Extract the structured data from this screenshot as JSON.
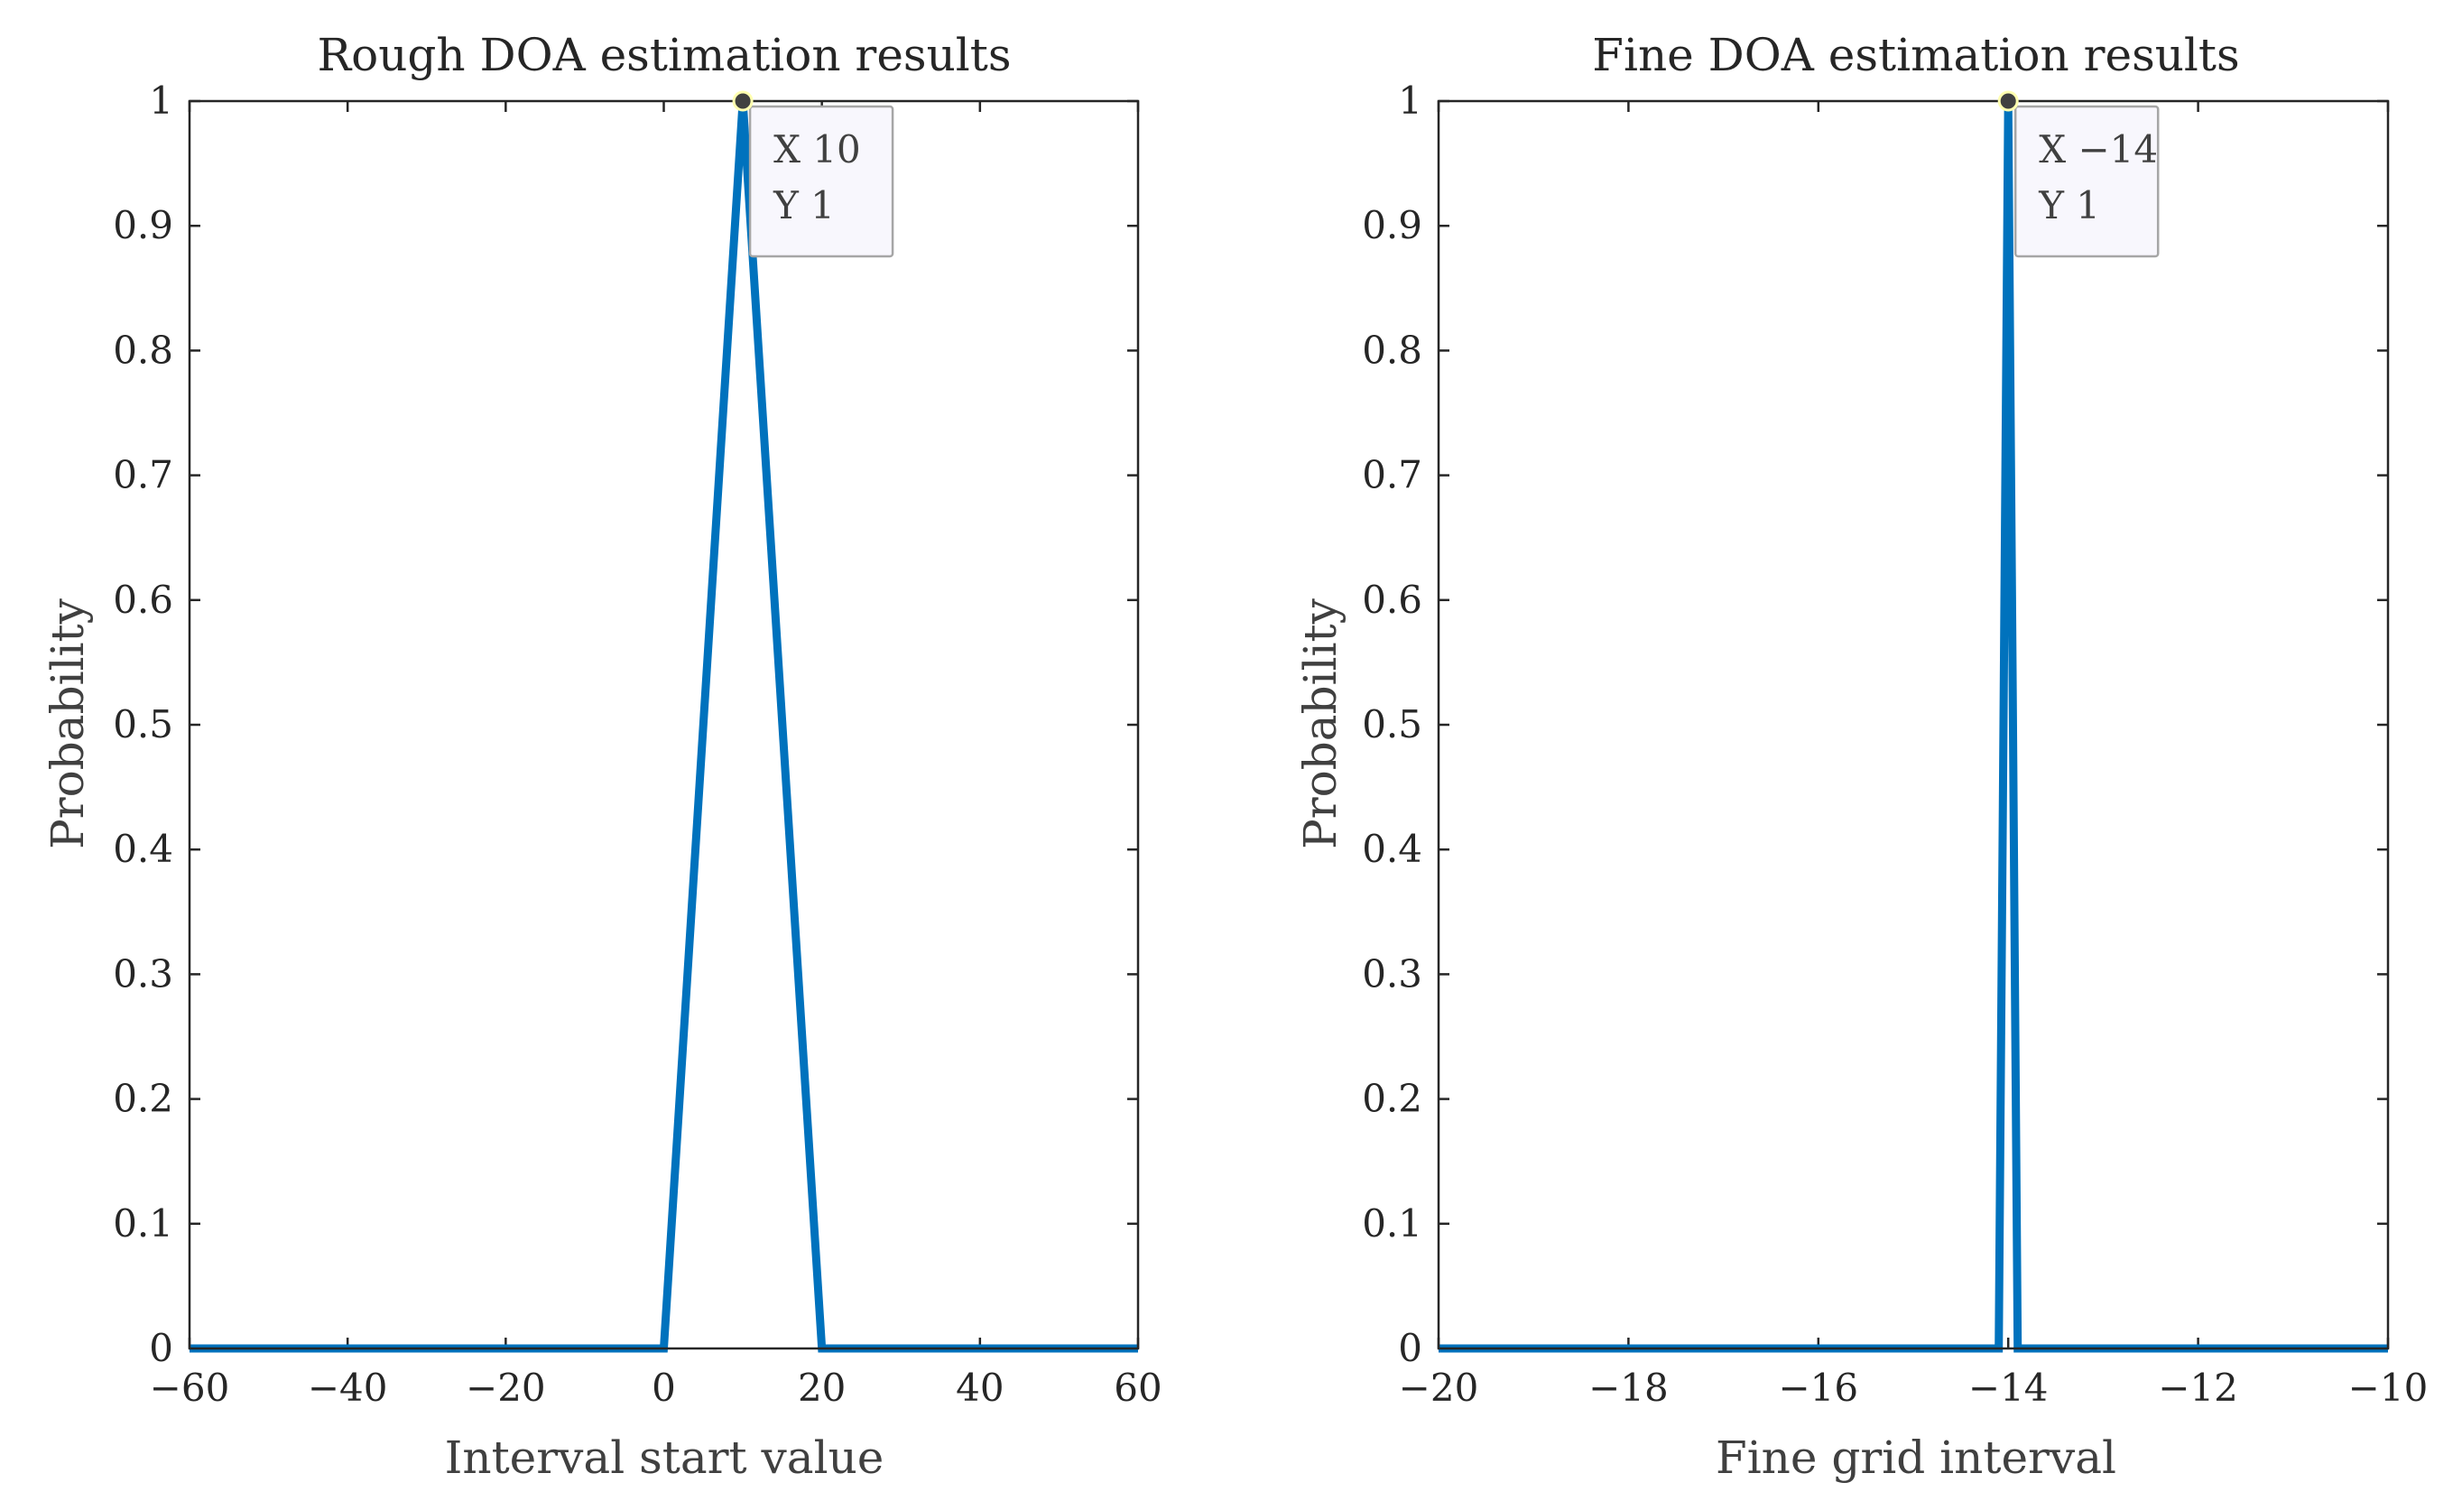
{
  "chart_data": [
    {
      "type": "line",
      "title": "Rough DOA estimation results",
      "xlabel": "Interval start value",
      "ylabel": "Probability",
      "xlim": [
        -60,
        60
      ],
      "ylim": [
        0,
        1
      ],
      "x_ticks": [
        -60,
        -40,
        -20,
        0,
        20,
        40,
        60
      ],
      "x_tick_labels": [
        "−60",
        "−40",
        "−20",
        "0",
        "20",
        "40",
        "60"
      ],
      "y_ticks": [
        0,
        0.1,
        0.2,
        0.3,
        0.4,
        0.5,
        0.6,
        0.7,
        0.8,
        0.9,
        1
      ],
      "y_tick_labels": [
        "0",
        "0.1",
        "0.2",
        "0.3",
        "0.4",
        "0.5",
        "0.6",
        "0.7",
        "0.8",
        "0.9",
        "1"
      ],
      "grid": false,
      "series": [
        {
          "color": "#0072BD",
          "x": [
            -60,
            -50,
            -40,
            -30,
            -20,
            -10,
            0,
            10,
            20,
            30,
            40,
            50,
            60
          ],
          "y": [
            0,
            0,
            0,
            0,
            0,
            0,
            0,
            1,
            0,
            0,
            0,
            0,
            0
          ]
        }
      ],
      "datatip": {
        "x": 10,
        "y": 1,
        "x_text": "X 10",
        "y_text": "Y 1"
      }
    },
    {
      "type": "line",
      "title": "Fine DOA estimation results",
      "xlabel": "Fine grid interval",
      "ylabel": "Probability",
      "xlim": [
        -20,
        -10
      ],
      "ylim": [
        0,
        1
      ],
      "x_ticks": [
        -20,
        -18,
        -16,
        -14,
        -12,
        -10
      ],
      "x_tick_labels": [
        "−20",
        "−18",
        "−16",
        "−14",
        "−12",
        "−10"
      ],
      "y_ticks": [
        0,
        0.1,
        0.2,
        0.3,
        0.4,
        0.5,
        0.6,
        0.7,
        0.8,
        0.9,
        1
      ],
      "y_tick_labels": [
        "0",
        "0.1",
        "0.2",
        "0.3",
        "0.4",
        "0.5",
        "0.6",
        "0.7",
        "0.8",
        "0.9",
        "1"
      ],
      "grid": false,
      "series": [
        {
          "color": "#0072BD",
          "x": [
            -20,
            -15,
            -14.1,
            -14,
            -13.9,
            -12,
            -10
          ],
          "y": [
            0,
            0,
            0,
            1,
            0,
            0,
            0
          ]
        }
      ],
      "datatip": {
        "x": -14,
        "y": 1,
        "x_text": "X −14",
        "y_text": "Y 1"
      }
    }
  ]
}
